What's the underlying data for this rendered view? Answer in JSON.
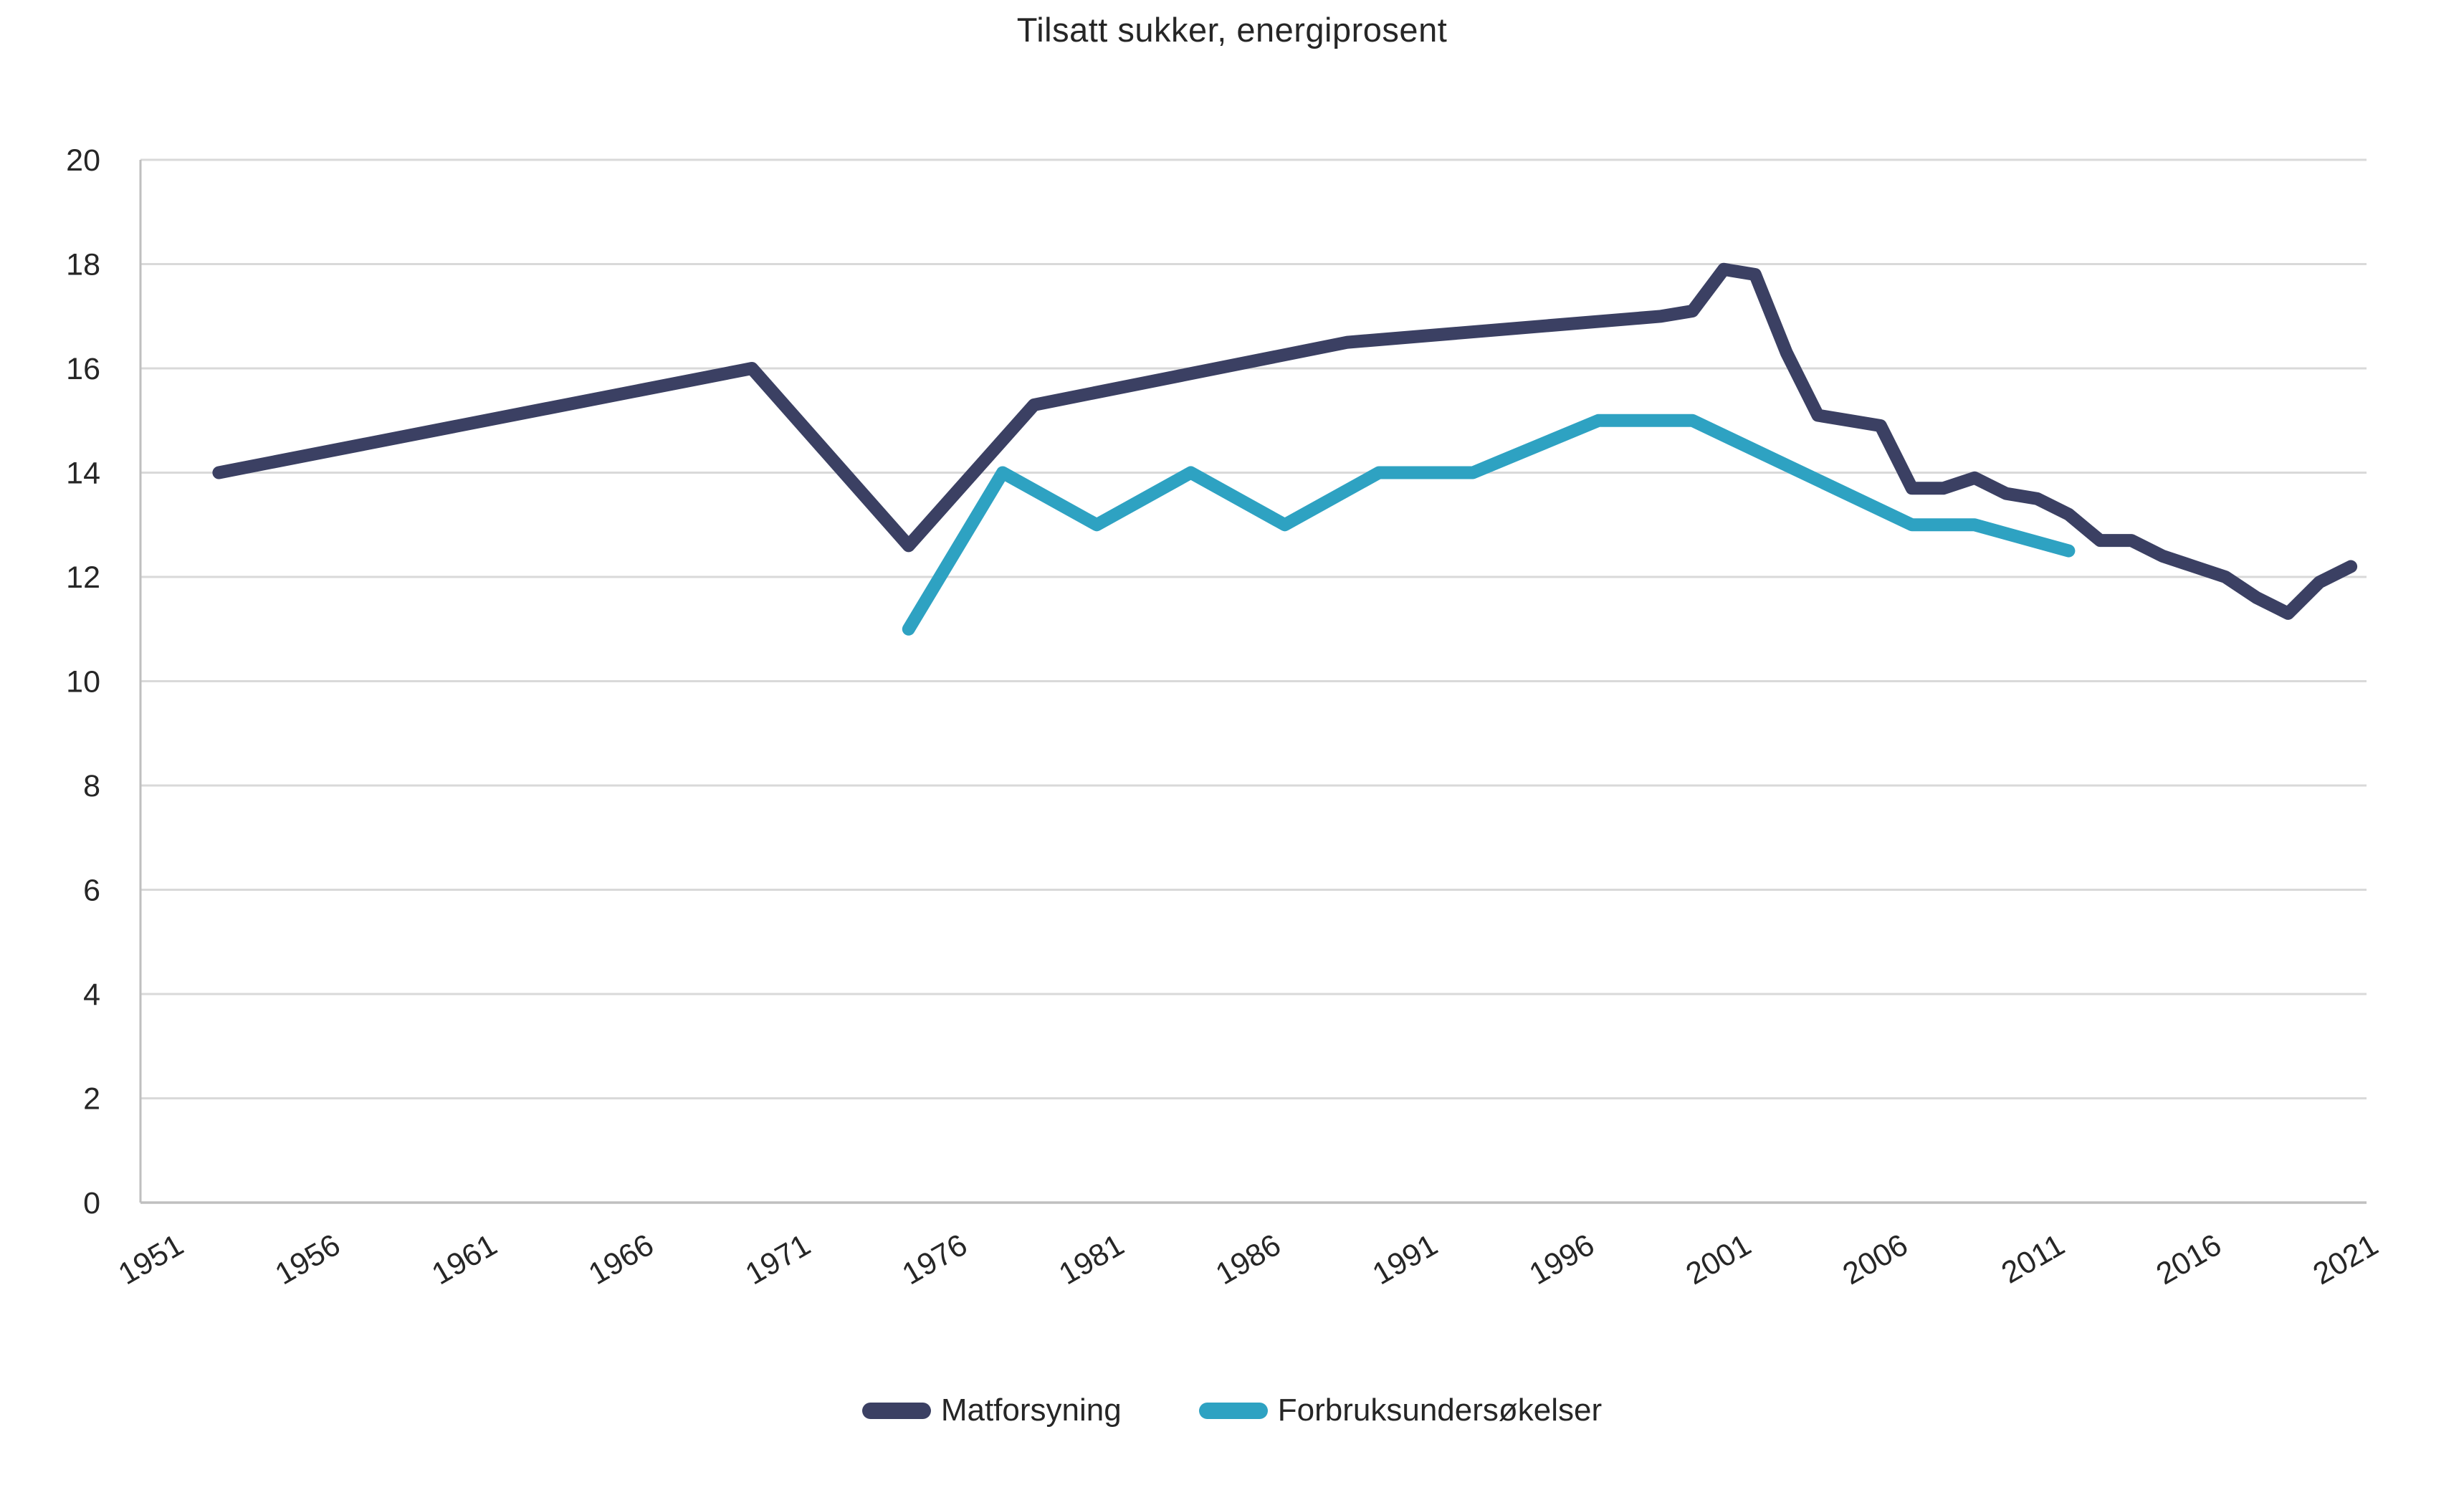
{
  "chart_data": {
    "type": "line",
    "title": "Tilsatt sukker, energiprosent",
    "xlabel": "",
    "ylabel": "",
    "x_range": [
      1951,
      2021
    ],
    "x_tick_labels": [
      "1951",
      "1956",
      "1961",
      "1966",
      "1971",
      "1976",
      "1981",
      "1986",
      "1991",
      "1996",
      "2001",
      "2006",
      "2011",
      "2016",
      "2021"
    ],
    "ylim": [
      0,
      20
    ],
    "y_tick_step": 2,
    "y_tick_labels": [
      "0",
      "2",
      "4",
      "6",
      "8",
      "10",
      "12",
      "14",
      "16",
      "18",
      "20"
    ],
    "grid": true,
    "legend_position": "bottom",
    "series": [
      {
        "name": "Matforsyning",
        "color": "#3B4063",
        "points": [
          [
            1953,
            14.0
          ],
          [
            1970,
            16.0
          ],
          [
            1975,
            12.6
          ],
          [
            1979,
            15.3
          ],
          [
            1989,
            16.5
          ],
          [
            1999,
            17.0
          ],
          [
            2000,
            17.1
          ],
          [
            2001,
            17.9
          ],
          [
            2002,
            17.8
          ],
          [
            2003,
            16.3
          ],
          [
            2004,
            15.1
          ],
          [
            2005,
            15.0
          ],
          [
            2006,
            14.9
          ],
          [
            2007,
            13.7
          ],
          [
            2008,
            13.7
          ],
          [
            2009,
            13.9
          ],
          [
            2010,
            13.6
          ],
          [
            2011,
            13.5
          ],
          [
            2012,
            13.2
          ],
          [
            2013,
            12.7
          ],
          [
            2014,
            12.7
          ],
          [
            2015,
            12.4
          ],
          [
            2016,
            12.2
          ],
          [
            2017,
            12.0
          ],
          [
            2018,
            11.6
          ],
          [
            2019,
            11.3
          ],
          [
            2020,
            11.9
          ],
          [
            2021,
            12.2
          ]
        ]
      },
      {
        "name": "Forbruksundersøkelser",
        "color": "#2EA2C2",
        "points": [
          [
            1975,
            11.0
          ],
          [
            1978,
            14.0
          ],
          [
            1981,
            13.0
          ],
          [
            1984,
            14.0
          ],
          [
            1987,
            13.0
          ],
          [
            1990,
            14.0
          ],
          [
            1993,
            14.0
          ],
          [
            1997,
            15.0
          ],
          [
            2000,
            15.0
          ],
          [
            2007,
            13.0
          ],
          [
            2009,
            13.0
          ],
          [
            2012,
            12.5
          ]
        ]
      }
    ],
    "colors": {
      "gridline": "#D9D9D9",
      "axis_line": "#BFBFBF",
      "text": "#262626",
      "background": "#FFFFFF"
    }
  }
}
